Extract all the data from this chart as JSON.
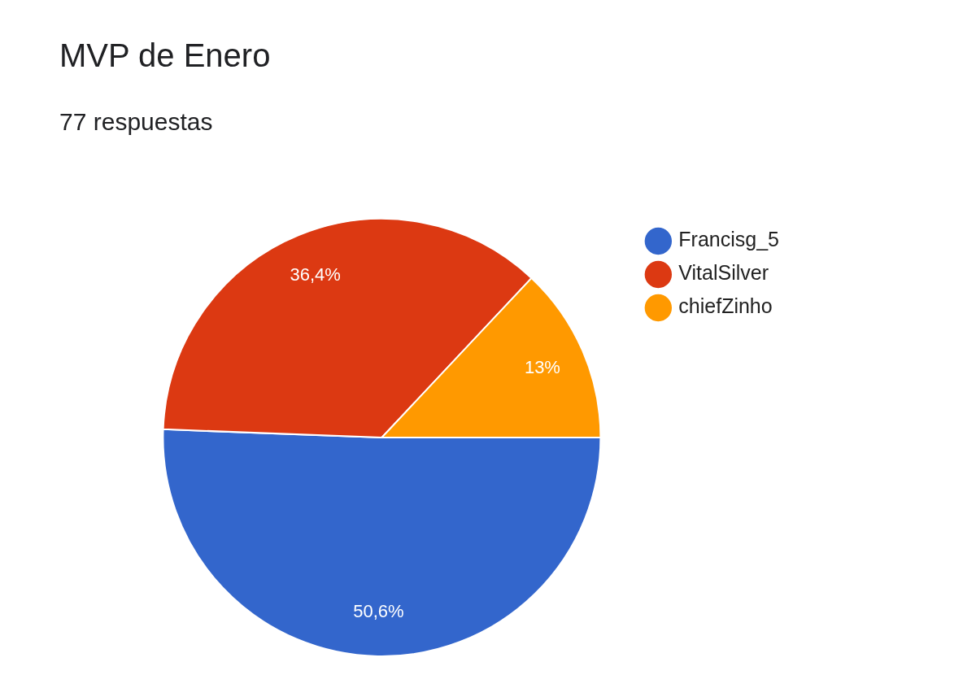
{
  "chart_data": {
    "type": "pie",
    "title": "MVP de Enero",
    "subtitle": "77 respuestas",
    "categories": [
      "Francisg_5",
      "VitalSilver",
      "chiefZinho"
    ],
    "values": [
      50.6,
      36.4,
      13
    ],
    "colors": [
      "#3366cc",
      "#dc3912",
      "#ff9900"
    ],
    "value_labels": [
      "50,6%",
      "36,4%",
      "13%"
    ],
    "legend": "top right"
  }
}
